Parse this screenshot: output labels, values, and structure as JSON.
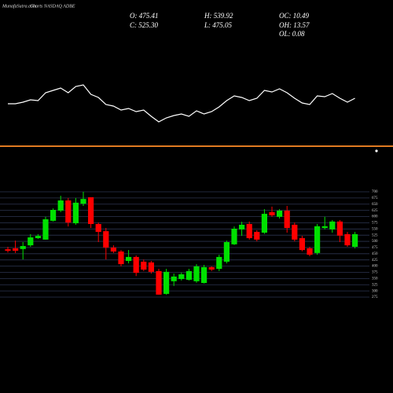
{
  "header": {
    "watermark": "MunafaSutra.com",
    "title": "Charts NASDAQ ADBE",
    "stats": [
      "O: 475.41",
      "H: 539.92",
      "OC: 10.49",
      "C: 525.30",
      "L: 475.05",
      "OH: 13.57",
      "OL: 0.08"
    ]
  },
  "chart_data": [
    {
      "type": "line",
      "color": "#ffffff",
      "ylim": [
        0,
        70
      ],
      "values": [
        38,
        38,
        40,
        43,
        42,
        52,
        55,
        58,
        52,
        60,
        62,
        50,
        46,
        37,
        35,
        30,
        32,
        28,
        30,
        22,
        15,
        20,
        23,
        25,
        22,
        29,
        25,
        28,
        34,
        42,
        48,
        46,
        42,
        45,
        55,
        53,
        57,
        52,
        45,
        39,
        37,
        48,
        47,
        51,
        45,
        40,
        45
      ]
    },
    {
      "type": "candlestick",
      "up_color": "#00e000",
      "down_color": "#ff0000",
      "grid": true,
      "ylim": [
        275,
        700
      ],
      "yticks": [
        700,
        675,
        650,
        625,
        600,
        575,
        550,
        525,
        500,
        475,
        450,
        425,
        400,
        375,
        350,
        325,
        300,
        275
      ],
      "open": [
        468,
        472,
        469,
        484,
        513,
        507,
        583,
        624,
        665,
        573,
        652,
        678,
        570,
        541,
        475,
        459,
        421,
        437,
        418,
        415,
        380,
        288,
        339,
        348,
        345,
        339,
        332,
        396,
        389,
        418,
        488,
        548,
        570,
        538,
        535,
        618,
        599,
        624,
        567,
        513,
        472,
        453,
        554,
        548,
        580,
        529,
        478
      ],
      "high": [
        478,
        503,
        497,
        529,
        529,
        599,
        633,
        684,
        675,
        675,
        700,
        678,
        576,
        554,
        484,
        465,
        465,
        443,
        427,
        421,
        389,
        389,
        370,
        374,
        389,
        408,
        405,
        399,
        446,
        503,
        560,
        579,
        580,
        545,
        630,
        640,
        630,
        643,
        576,
        522,
        478,
        570,
        599,
        586,
        586,
        538,
        538
      ],
      "low": [
        455,
        453,
        427,
        478,
        510,
        507,
        580,
        618,
        560,
        567,
        643,
        554,
        497,
        427,
        453,
        399,
        411,
        360,
        380,
        370,
        285,
        285,
        320,
        342,
        342,
        333,
        330,
        380,
        380,
        411,
        485,
        522,
        507,
        500,
        530,
        599,
        592,
        535,
        500,
        460,
        440,
        446,
        548,
        535,
        497,
        478,
        472
      ],
      "close": [
        462,
        462,
        481,
        516,
        522,
        589,
        627,
        665,
        576,
        656,
        671,
        570,
        538,
        475,
        459,
        408,
        437,
        373,
        386,
        377,
        285,
        377,
        358,
        367,
        380,
        399,
        396,
        386,
        437,
        497,
        551,
        567,
        513,
        507,
        611,
        605,
        624,
        554,
        507,
        465,
        446,
        561,
        561,
        580,
        523,
        484,
        529
      ]
    }
  ]
}
